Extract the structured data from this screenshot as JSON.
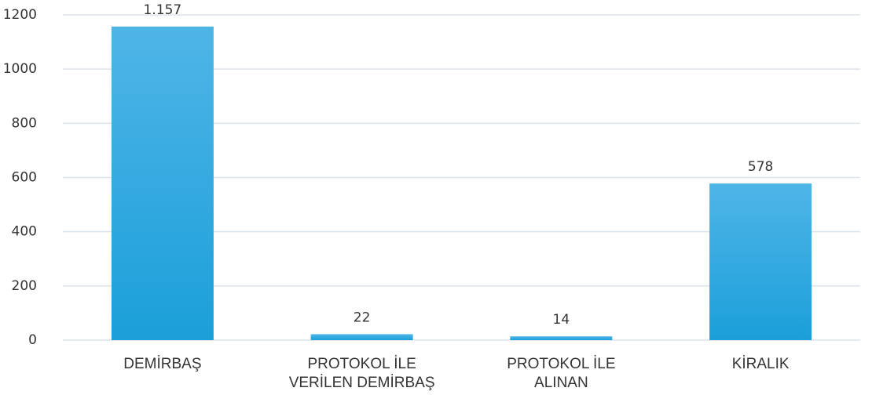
{
  "chart_data": {
    "type": "bar",
    "categories": [
      "DEMİRBAŞ",
      "PROTOKOL İLE VERİLEN DEMİRBAŞ",
      "PROTOKOL İLE ALINAN",
      "KİRALIK"
    ],
    "values": [
      1157,
      22,
      14,
      578
    ],
    "value_labels": [
      "1.157",
      "22",
      "14",
      "578"
    ],
    "color": "#2aa8e0",
    "ylim": [
      0,
      1200
    ],
    "yticks": [
      0,
      200,
      400,
      600,
      800,
      1000,
      1200
    ],
    "grid": true
  }
}
